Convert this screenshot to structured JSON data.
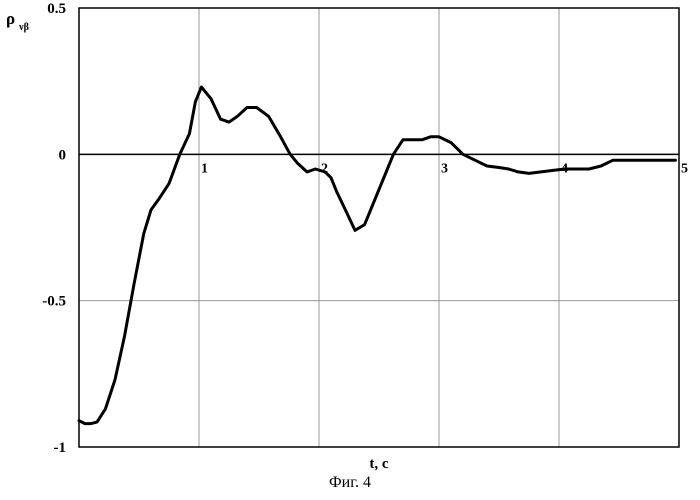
{
  "chart_data": {
    "type": "line",
    "title": "",
    "xlabel": "t, c",
    "ylabel_main": "ρ",
    "ylabel_sub": "νβ",
    "xlim": [
      0,
      5
    ],
    "ylim": [
      -1,
      0.5
    ],
    "x_ticks": [
      1,
      2,
      3,
      4,
      5
    ],
    "y_ticks": [
      0.5,
      0,
      -0.5,
      -1
    ],
    "x_tick_labels": [
      "1",
      "2",
      "3",
      "4",
      "5"
    ],
    "y_tick_labels": [
      "0.5",
      "0",
      "-0.5",
      "-1"
    ],
    "grid": true,
    "series": [
      {
        "color": "#000000",
        "x": [
          0.0,
          0.05,
          0.1,
          0.15,
          0.22,
          0.3,
          0.38,
          0.46,
          0.54,
          0.6,
          0.67,
          0.75,
          0.84,
          0.92,
          0.97,
          1.02,
          1.1,
          1.18,
          1.25,
          1.32,
          1.4,
          1.48,
          1.58,
          1.68,
          1.76,
          1.82,
          1.9,
          1.97,
          2.05,
          2.1,
          2.15,
          2.22,
          2.3,
          2.38,
          2.5,
          2.62,
          2.7,
          2.78,
          2.86,
          2.93,
          3.0,
          3.1,
          3.2,
          3.3,
          3.4,
          3.5,
          3.58,
          3.66,
          3.75,
          3.85,
          3.95,
          4.05,
          4.15,
          4.25,
          4.35,
          4.45,
          4.55,
          4.65,
          4.75,
          4.82,
          4.9,
          4.97
        ],
        "y": [
          -0.91,
          -0.92,
          -0.92,
          -0.915,
          -0.87,
          -0.77,
          -0.62,
          -0.44,
          -0.27,
          -0.19,
          -0.15,
          -0.1,
          0.0,
          0.07,
          0.18,
          0.23,
          0.19,
          0.12,
          0.11,
          0.13,
          0.16,
          0.16,
          0.13,
          0.06,
          0.0,
          -0.03,
          -0.06,
          -0.05,
          -0.06,
          -0.08,
          -0.13,
          -0.19,
          -0.26,
          -0.24,
          -0.12,
          0.0,
          0.05,
          0.05,
          0.05,
          0.06,
          0.06,
          0.04,
          0.0,
          -0.02,
          -0.04,
          -0.045,
          -0.05,
          -0.06,
          -0.065,
          -0.06,
          -0.055,
          -0.05,
          -0.05,
          -0.05,
          -0.04,
          -0.02,
          -0.02,
          -0.02,
          -0.02,
          -0.02,
          -0.02,
          -0.02
        ]
      }
    ]
  },
  "caption": "Фиг. 4"
}
